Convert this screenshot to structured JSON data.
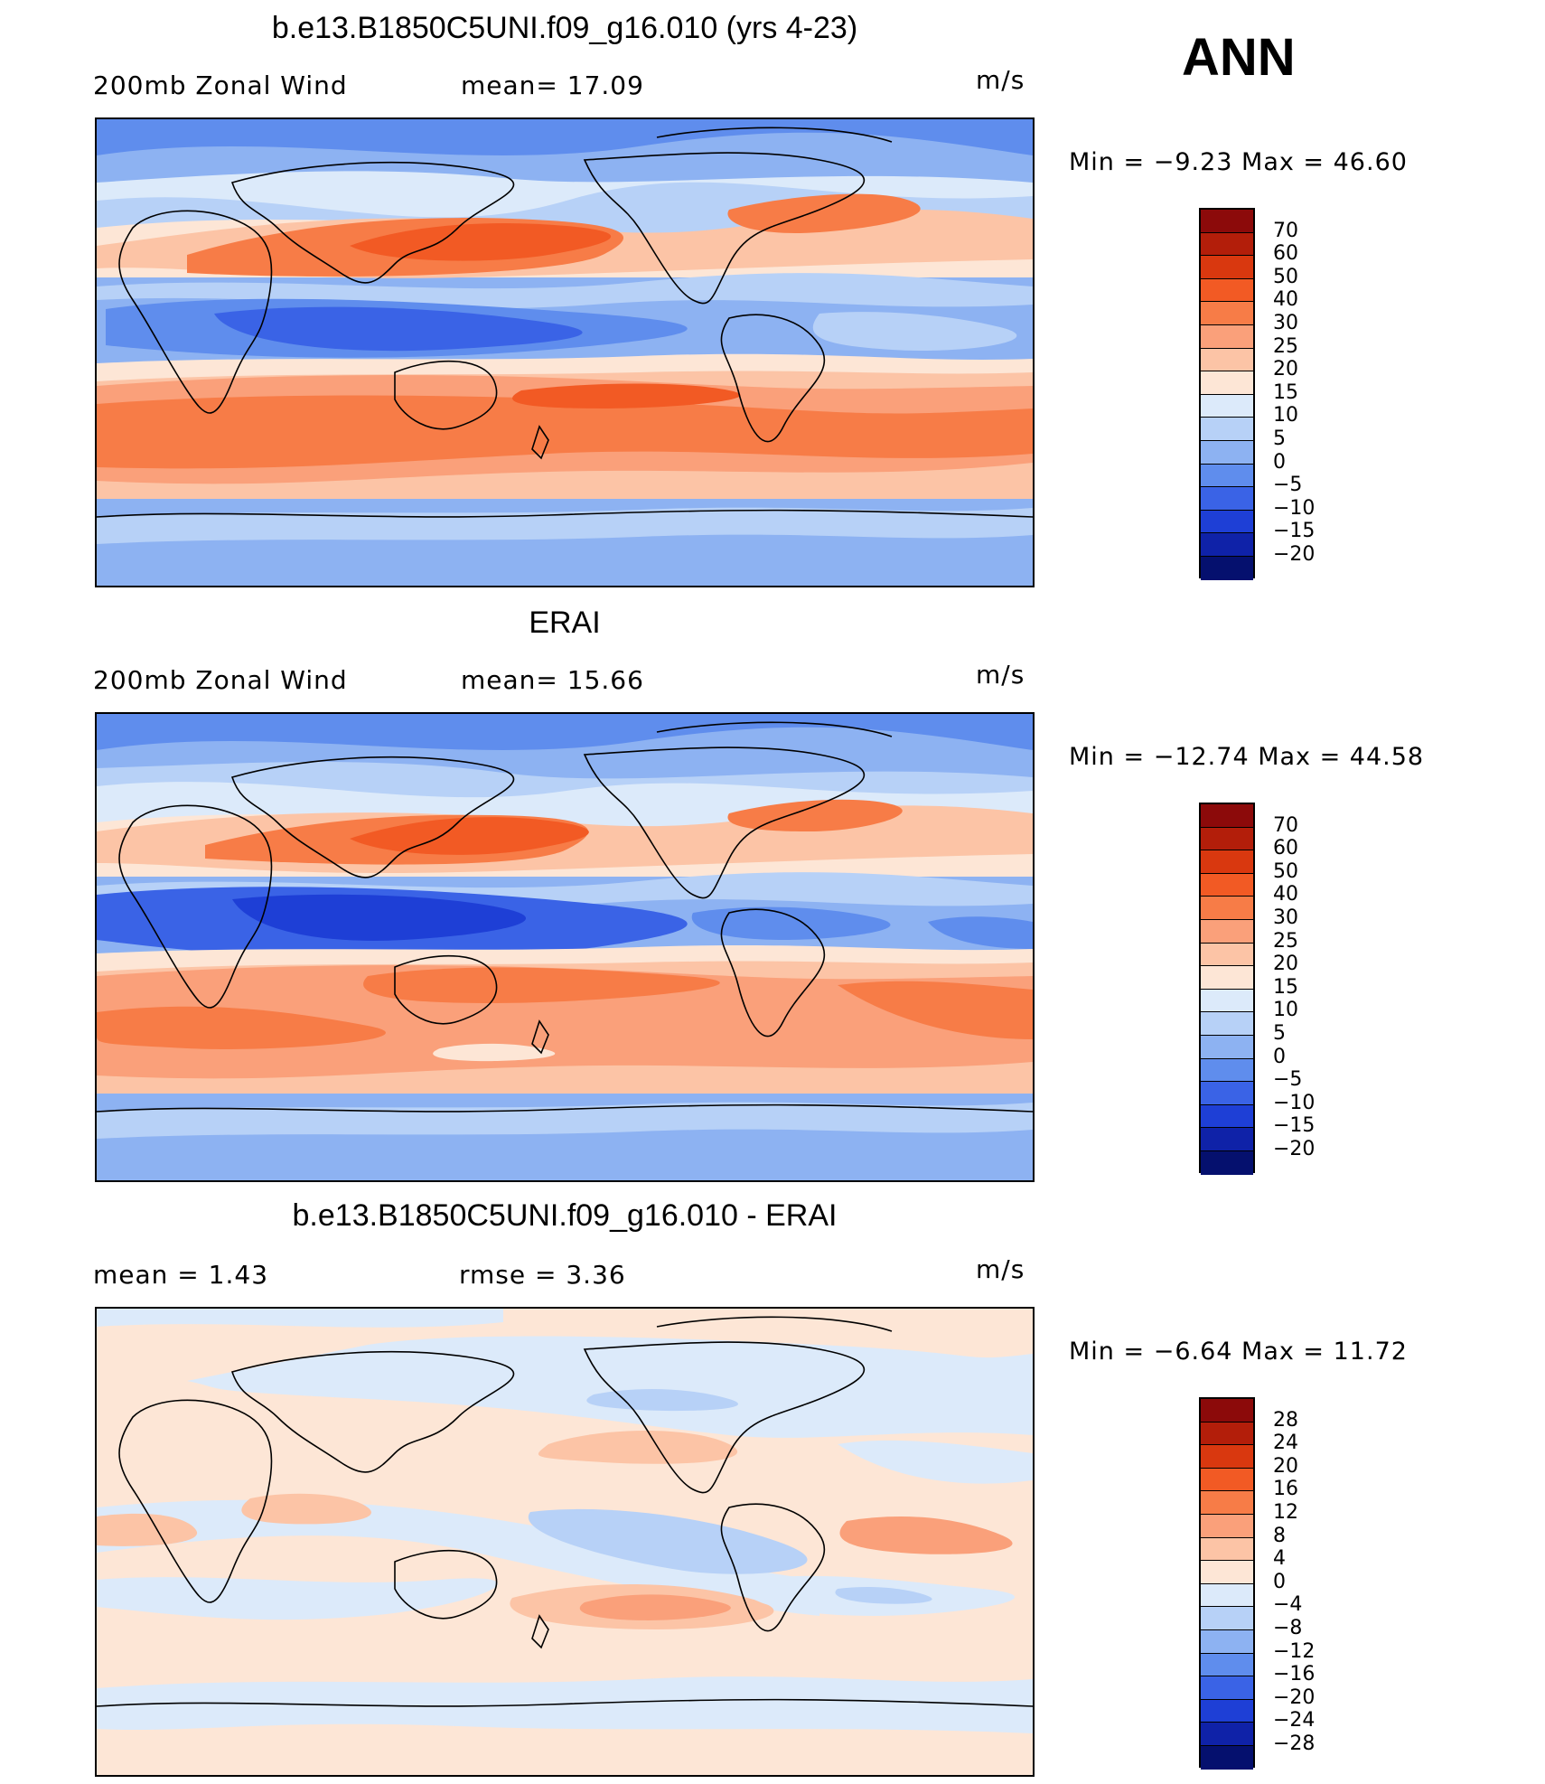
{
  "season": "ANN",
  "panels": [
    {
      "title": "b.e13.B1850C5UNI.f09_g16.010 (yrs 4-23)",
      "left_label": "200mb Zonal Wind",
      "mid_label": "mean=  17.09",
      "units": "m/s",
      "minmax": "Min =   −9.23 Max =   46.60"
    },
    {
      "title": "ERAI",
      "left_label": "200mb Zonal Wind",
      "mid_label": "mean=  15.66",
      "units": "m/s",
      "minmax": "Min = −12.74 Max =   44.58"
    },
    {
      "title": "b.e13.B1850C5UNI.f09_g16.010 - ERAI",
      "left_label": "mean =    1.43",
      "mid_label": "rmse =    3.36",
      "units": "m/s",
      "minmax": "Min =   −6.64 Max =   11.72"
    }
  ],
  "colorbar_wind": {
    "labels": [
      "70",
      "60",
      "50",
      "40",
      "30",
      "25",
      "20",
      "15",
      "10",
      "5",
      "0",
      "−5",
      "−10",
      "−15",
      "−20"
    ],
    "colors": [
      "#8c0a0a",
      "#b31e0a",
      "#d9380f",
      "#f25a24",
      "#f77c47",
      "#faa07a",
      "#fcc4a6",
      "#fde6d6",
      "#dceafa",
      "#b7d1f7",
      "#8db2f2",
      "#5f8ded",
      "#3a63e6",
      "#1e3fd6",
      "#0f22a8",
      "#05106e"
    ]
  },
  "colorbar_diff": {
    "labels": [
      "28",
      "24",
      "20",
      "16",
      "12",
      "8",
      "4",
      "0",
      "−4",
      "−8",
      "−12",
      "−16",
      "−20",
      "−24",
      "−28"
    ],
    "colors": [
      "#8c0a0a",
      "#b31e0a",
      "#d9380f",
      "#f25a24",
      "#f77c47",
      "#faa07a",
      "#fcc4a6",
      "#fde6d6",
      "#dceafa",
      "#b7d1f7",
      "#8db2f2",
      "#5f8ded",
      "#3a63e6",
      "#1e3fd6",
      "#0f22a8",
      "#05106e"
    ]
  }
}
